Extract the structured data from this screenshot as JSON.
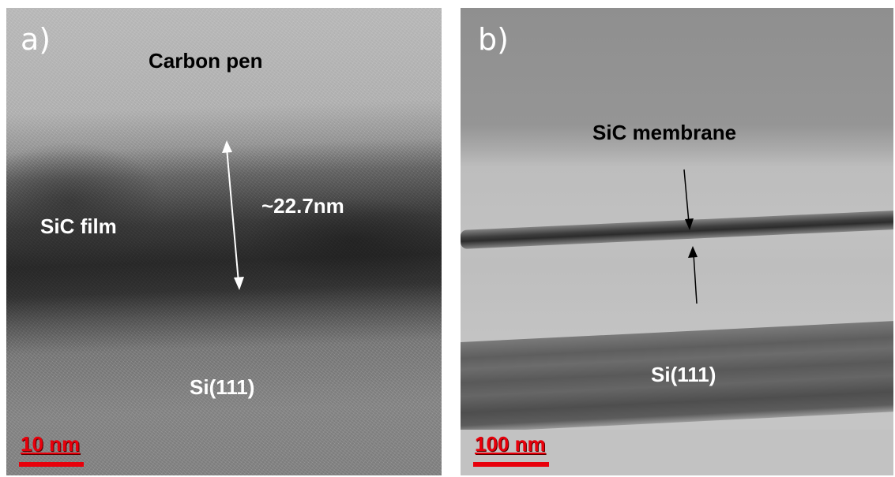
{
  "panel_a": {
    "letter": "a)",
    "top_label": "Carbon pen",
    "film_label": "SiC film",
    "thickness_label": "~22.7nm",
    "substrate_label": "Si(111)",
    "scale_label": "10 nm"
  },
  "panel_b": {
    "letter": "b)",
    "membrane_label": "SiC membrane",
    "substrate_label": "Si(111)",
    "scale_label": "100 nm"
  },
  "colors": {
    "scale_bar": "#e8000b",
    "annotation_text_a": "#ffffff",
    "annotation_text_b": "#000000"
  }
}
